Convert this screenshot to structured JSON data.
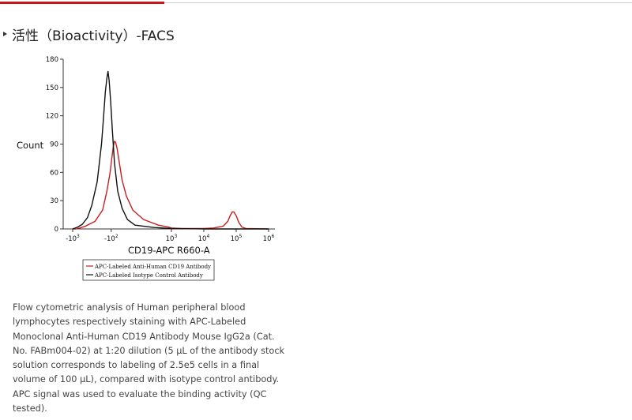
{
  "header": {
    "title": "活性（Bioactivity）-FACS"
  },
  "chart_data": {
    "type": "line",
    "xlabel": "CD19-APC R660-A",
    "ylabel": "Count",
    "xscale": "log (biexponential)",
    "x_ticks": [
      {
        "base": "-10",
        "exp": "3",
        "value": -1000
      },
      {
        "base": "-10",
        "exp": "2",
        "value": -100
      },
      {
        "base": "10",
        "exp": "3",
        "value": 1000
      },
      {
        "base": "10",
        "exp": "4",
        "value": 10000
      },
      {
        "base": "10",
        "exp": "5",
        "value": 100000
      },
      {
        "base": "10",
        "exp": "6",
        "value": 1000000
      }
    ],
    "y_ticks": [
      "0",
      "30",
      "60",
      "90",
      "120",
      "150",
      "180"
    ],
    "ylim": [
      0,
      180
    ],
    "grid": false,
    "legend_position": "bottom",
    "series": [
      {
        "name": "APC-Labeled Anti-Human CD19 Antibody",
        "color": "#c81e1e",
        "points": [
          [
            -1000,
            0
          ],
          [
            -800,
            0
          ],
          [
            -600,
            1
          ],
          [
            -400,
            3
          ],
          [
            -250,
            8
          ],
          [
            -180,
            20
          ],
          [
            -140,
            40
          ],
          [
            -110,
            60
          ],
          [
            -95,
            75
          ],
          [
            -80,
            88
          ],
          [
            -70,
            93
          ],
          [
            -60,
            92
          ],
          [
            -45,
            85
          ],
          [
            -25,
            70
          ],
          [
            0,
            52
          ],
          [
            40,
            35
          ],
          [
            100,
            20
          ],
          [
            200,
            10
          ],
          [
            400,
            4
          ],
          [
            800,
            2
          ],
          [
            1000,
            1
          ],
          [
            2000,
            0.5
          ],
          [
            5000,
            0.5
          ],
          [
            10000,
            0.5
          ],
          [
            20000,
            1
          ],
          [
            40000,
            3
          ],
          [
            55000,
            8
          ],
          [
            65000,
            14
          ],
          [
            75000,
            18
          ],
          [
            85000,
            18
          ],
          [
            100000,
            14
          ],
          [
            120000,
            7
          ],
          [
            150000,
            2
          ],
          [
            200000,
            0.5
          ],
          [
            1000000,
            0
          ]
        ]
      },
      {
        "name": "APC-Labeled Isotype Control Antibody",
        "color": "#111111",
        "points": [
          [
            -1000,
            0
          ],
          [
            -700,
            2
          ],
          [
            -500,
            5
          ],
          [
            -350,
            12
          ],
          [
            -280,
            25
          ],
          [
            -230,
            50
          ],
          [
            -190,
            90
          ],
          [
            -170,
            120
          ],
          [
            -155,
            145
          ],
          [
            -140,
            160
          ],
          [
            -130,
            167
          ],
          [
            -120,
            158
          ],
          [
            -105,
            135
          ],
          [
            -90,
            105
          ],
          [
            -70,
            70
          ],
          [
            -40,
            40
          ],
          [
            0,
            22
          ],
          [
            50,
            10
          ],
          [
            120,
            4
          ],
          [
            300,
            1.5
          ],
          [
            1000,
            0.5
          ],
          [
            10000,
            0
          ],
          [
            1000000,
            0
          ]
        ]
      }
    ]
  },
  "caption": "Flow cytometric analysis of Human peripheral blood lymphocytes respectively staining with APC-Labeled Monoclonal Anti-Human CD19 Antibody Mouse IgG2a (Cat. No. FABm004-02) at 1:20 dilution (5 μL of the antibody stock solution corresponds to labeling of 2.5e5 cells in a final volume of 100 μL), compared with isotype control antibody. APC signal was used to evaluate the binding activity (QC tested)."
}
